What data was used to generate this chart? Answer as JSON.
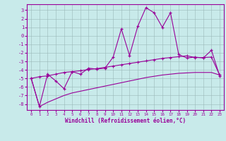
{
  "x": [
    0,
    1,
    2,
    3,
    4,
    5,
    6,
    7,
    8,
    9,
    10,
    11,
    12,
    13,
    14,
    15,
    16,
    17,
    18,
    19,
    20,
    21,
    22,
    23
  ],
  "main_line": [
    -5.0,
    -8.3,
    -4.5,
    -5.3,
    -6.2,
    -4.2,
    -4.5,
    -3.8,
    -3.9,
    -3.8,
    -2.5,
    0.8,
    -2.3,
    1.1,
    3.3,
    2.7,
    1.0,
    2.7,
    -2.2,
    -2.6,
    -2.5,
    -2.6,
    -1.7,
    -4.7
  ],
  "upper_line": [
    -5.0,
    -4.8,
    -4.7,
    -4.5,
    -4.3,
    -4.2,
    -4.1,
    -3.95,
    -3.85,
    -3.7,
    -3.55,
    -3.4,
    -3.25,
    -3.1,
    -2.95,
    -2.8,
    -2.65,
    -2.55,
    -2.45,
    -2.35,
    -2.55,
    -2.55,
    -2.5,
    -4.6
  ],
  "lower_line": [
    -5.0,
    -8.3,
    -7.8,
    -7.4,
    -7.0,
    -6.7,
    -6.5,
    -6.3,
    -6.1,
    -5.9,
    -5.7,
    -5.5,
    -5.3,
    -5.1,
    -4.9,
    -4.75,
    -4.6,
    -4.5,
    -4.4,
    -4.35,
    -4.3,
    -4.3,
    -4.3,
    -4.6
  ],
  "line_color": "#990099",
  "bg_color": "#c8eaea",
  "grid_color": "#9ab8b8",
  "xlabel": "Windchill (Refroidissement éolien,°C)",
  "xlim": [
    -0.5,
    23.5
  ],
  "ylim": [
    -8.7,
    3.7
  ],
  "yticks": [
    -8,
    -7,
    -6,
    -5,
    -4,
    -3,
    -2,
    -1,
    0,
    1,
    2,
    3
  ],
  "xticks": [
    0,
    1,
    2,
    3,
    4,
    5,
    6,
    7,
    8,
    9,
    10,
    11,
    12,
    13,
    14,
    15,
    16,
    17,
    18,
    19,
    20,
    21,
    22,
    23
  ]
}
